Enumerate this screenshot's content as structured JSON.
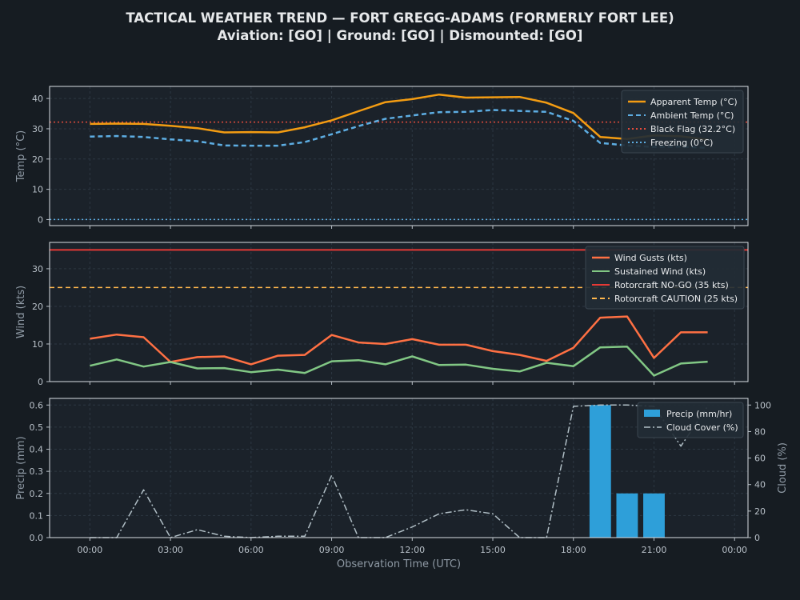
{
  "title_line1": "TACTICAL WEATHER TREND — FORT GREGG-ADAMS (FORMERLY FORT LEE)",
  "title_line2": "Aviation: [GO]  |  Ground: [GO]  |  Dismounted: [GO]",
  "colors": {
    "background": "#161c22",
    "panel": "#1b222a",
    "apparent": "#f39c12",
    "ambient": "#5dade2",
    "black_flag": "#e74c3c",
    "freezing": "#5dade2",
    "gusts": "#ff7043",
    "sustained": "#81c784",
    "nogo": "#e53935",
    "caution": "#ffb74d",
    "precip": "#2e9fd9",
    "cloud": "#b0bec5"
  },
  "chart_data": [
    {
      "type": "line",
      "ylabel": "Temp (°C)",
      "ylim": [
        -2,
        44
      ],
      "yticks": [
        0,
        10,
        20,
        30,
        40
      ],
      "x": [
        0,
        1,
        2,
        3,
        4,
        5,
        6,
        7,
        8,
        9,
        10,
        11,
        12,
        13,
        14,
        15,
        16,
        17,
        18,
        19,
        20,
        21,
        22,
        23
      ],
      "series": [
        {
          "name": "Apparent Temp (°C)",
          "style": "solid",
          "values": [
            31.6,
            31.7,
            31.6,
            31.0,
            30.2,
            28.8,
            28.9,
            28.8,
            30.5,
            32.8,
            35.8,
            38.8,
            39.8,
            41.3,
            40.3,
            40.4,
            40.5,
            38.6,
            35.2,
            27.3,
            26.6,
            27.8,
            27.5,
            26.4
          ]
        },
        {
          "name": "Ambient Temp (°C)",
          "style": "dashed",
          "values": [
            27.4,
            27.6,
            27.3,
            26.5,
            25.9,
            24.5,
            24.4,
            24.4,
            25.6,
            28.2,
            30.9,
            33.3,
            34.4,
            35.5,
            35.6,
            36.2,
            35.9,
            35.6,
            32.6,
            25.3,
            24.5,
            24.0,
            24.1,
            23.7
          ]
        }
      ],
      "reference_lines": [
        {
          "name": "Black Flag (32.2°C)",
          "value": 32.2,
          "style": "dotted"
        },
        {
          "name": "Freezing (0°C)",
          "value": 0,
          "style": "dotted"
        }
      ],
      "grid": true,
      "legend": "top-right"
    },
    {
      "type": "line",
      "ylabel": "Wind (kts)",
      "ylim": [
        0,
        37
      ],
      "yticks": [
        0,
        10,
        20,
        30
      ],
      "x": [
        0,
        1,
        2,
        3,
        4,
        5,
        6,
        7,
        8,
        9,
        10,
        11,
        12,
        13,
        14,
        15,
        16,
        17,
        18,
        19,
        20,
        21,
        22,
        23
      ],
      "series": [
        {
          "name": "Wind Gusts (kts)",
          "style": "solid",
          "values": [
            11.4,
            12.5,
            11.8,
            5.2,
            6.5,
            6.7,
            4.6,
            6.9,
            7.1,
            12.4,
            10.4,
            10.0,
            11.3,
            9.8,
            9.8,
            8.1,
            7.1,
            5.5,
            9.0,
            17.0,
            17.3,
            6.3,
            13.1,
            13.1
          ]
        },
        {
          "name": "Sustained Wind (kts)",
          "style": "solid",
          "values": [
            4.2,
            5.9,
            4.0,
            5.2,
            3.5,
            3.6,
            2.5,
            3.2,
            2.3,
            5.4,
            5.7,
            4.6,
            6.7,
            4.4,
            4.5,
            3.4,
            2.7,
            5.0,
            4.1,
            9.1,
            9.3,
            1.6,
            4.8,
            5.3
          ]
        }
      ],
      "reference_lines": [
        {
          "name": "Rotorcraft NO-GO (35 kts)",
          "value": 35,
          "style": "solid"
        },
        {
          "name": "Rotorcraft CAUTION (25 kts)",
          "value": 25,
          "style": "dashed"
        }
      ],
      "grid": true,
      "legend": "top-right"
    },
    {
      "type": "bar",
      "ylabel": "Precip (mm)",
      "y2label": "Cloud (%)",
      "xlabel": "Observation Time (UTC)",
      "ylim": [
        0,
        0.63
      ],
      "y2lim": [
        0,
        105
      ],
      "yticks": [
        0.0,
        0.1,
        0.2,
        0.3,
        0.4,
        0.5,
        0.6
      ],
      "yticklabels": [
        "0.0",
        "0.1",
        "0.2",
        "0.3",
        "0.4",
        "0.5",
        "0.6"
      ],
      "y2ticks": [
        0,
        20,
        40,
        60,
        80,
        100
      ],
      "xlim": [
        -1.5,
        24.5
      ],
      "xticks": [
        0,
        3,
        6,
        9,
        12,
        15,
        18,
        21,
        24
      ],
      "xticklabels": [
        "00:00",
        "03:00",
        "06:00",
        "09:00",
        "12:00",
        "15:00",
        "18:00",
        "21:00",
        "00:00"
      ],
      "x": [
        0,
        1,
        2,
        3,
        4,
        5,
        6,
        7,
        8,
        9,
        10,
        11,
        12,
        13,
        14,
        15,
        16,
        17,
        18,
        19,
        20,
        21,
        22,
        23
      ],
      "series": [
        {
          "name": "Precip (mm/hr)",
          "axis": "left",
          "type": "bar",
          "values": [
            0,
            0,
            0,
            0,
            0,
            0,
            0,
            0,
            0,
            0,
            0,
            0,
            0,
            0,
            0,
            0,
            0,
            0,
            0,
            0.6,
            0.2,
            0.2,
            0,
            0
          ]
        },
        {
          "name": "Cloud Cover (%)",
          "axis": "right",
          "type": "line",
          "style": "dashdot",
          "values": [
            0,
            0,
            36,
            0,
            6,
            1,
            0,
            1,
            1,
            47,
            0,
            0,
            8,
            18,
            21,
            18,
            0,
            0,
            99,
            100,
            100,
            99,
            69,
            99
          ]
        }
      ],
      "grid": true,
      "legend": "top-right"
    }
  ]
}
